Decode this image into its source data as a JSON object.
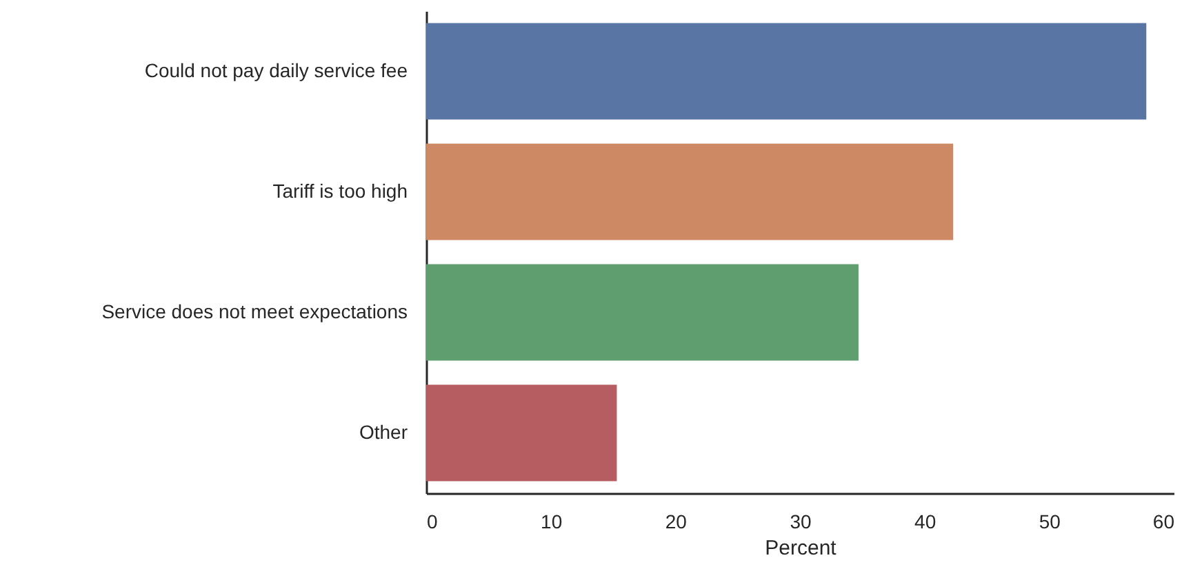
{
  "chart_data": {
    "type": "bar",
    "orientation": "horizontal",
    "xlabel": "Percent",
    "categories": [
      "Could not pay daily service fee",
      "Tariff is too high",
      "Service does not meet expectations",
      "Other"
    ],
    "values": [
      57.8,
      42.3,
      34.7,
      15.3
    ],
    "colors": [
      "#5975a4",
      "#cc8963",
      "#5f9e6e",
      "#b55d60"
    ],
    "xlim": [
      0,
      60
    ],
    "xticks": [
      0,
      10,
      20,
      30,
      40,
      50,
      60
    ],
    "grid": false
  }
}
